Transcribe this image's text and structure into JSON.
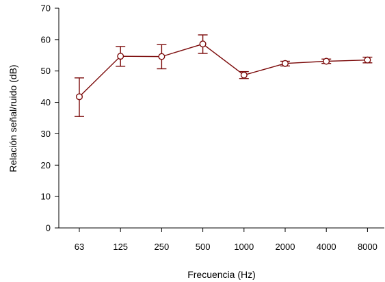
{
  "chart_data": {
    "type": "line",
    "title": "",
    "xlabel": "Frecuencia (Hz)",
    "ylabel": "Relación señal/ruido (dB)",
    "categories": [
      "63",
      "125",
      "250",
      "500",
      "1000",
      "2000",
      "4000",
      "8000"
    ],
    "ylim": [
      0,
      70
    ],
    "yticks": [
      0,
      10,
      20,
      30,
      40,
      50,
      60,
      70
    ],
    "grid": false,
    "series": [
      {
        "values": [
          41.8,
          54.7,
          54.6,
          58.6,
          48.7,
          52.4,
          53.1,
          53.5
        ],
        "error_low": [
          35.5,
          51.5,
          50.7,
          55.6,
          47.6,
          51.6,
          52.4,
          52.6
        ],
        "error_high": [
          47.8,
          57.8,
          58.4,
          61.5,
          49.8,
          53.1,
          53.8,
          54.4
        ],
        "color": "#7b0a0a",
        "marker": "open-circle"
      }
    ]
  }
}
